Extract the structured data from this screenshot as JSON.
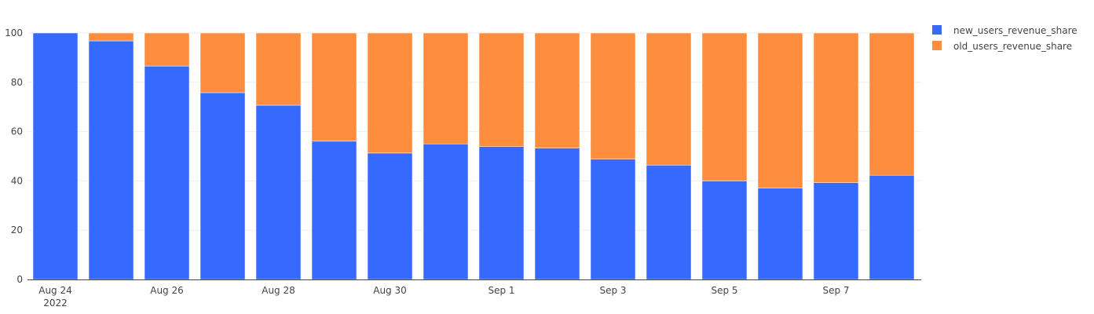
{
  "chart_data": {
    "type": "bar",
    "stacked": true,
    "x": [
      "2022-08-24",
      "2022-08-25",
      "2022-08-26",
      "2022-08-27",
      "2022-08-28",
      "2022-08-29",
      "2022-08-30",
      "2022-08-31",
      "2022-09-01",
      "2022-09-02",
      "2022-09-03",
      "2022-09-04",
      "2022-09-05",
      "2022-09-06",
      "2022-09-07",
      "2022-09-08"
    ],
    "x_tick_labels": [
      {
        "x": "2022-08-24",
        "label": "Aug 24",
        "sublabel": "2022"
      },
      {
        "x": "2022-08-26",
        "label": "Aug 26",
        "sublabel": ""
      },
      {
        "x": "2022-08-28",
        "label": "Aug 28",
        "sublabel": ""
      },
      {
        "x": "2022-08-30",
        "label": "Aug 30",
        "sublabel": ""
      },
      {
        "x": "2022-09-01",
        "label": "Sep 1",
        "sublabel": ""
      },
      {
        "x": "2022-09-03",
        "label": "Sep 3",
        "sublabel": ""
      },
      {
        "x": "2022-09-05",
        "label": "Sep 5",
        "sublabel": ""
      },
      {
        "x": "2022-09-07",
        "label": "Sep 7",
        "sublabel": ""
      }
    ],
    "y_ticks": [
      "0",
      "20",
      "40",
      "60",
      "80",
      "100"
    ],
    "ylim": [
      0,
      100
    ],
    "grid": true,
    "legend_position": "top-right",
    "series": [
      {
        "name": "new_users_revenue_share",
        "color": "#366aff",
        "values": [
          100,
          96.8,
          86.6,
          75.8,
          70.7,
          56.1,
          51.3,
          55.0,
          53.9,
          53.3,
          48.8,
          46.4,
          40.0,
          37.1,
          39.3,
          42.3
        ]
      },
      {
        "name": "old_users_revenue_share",
        "color": "#fe8d3e",
        "values": [
          0,
          3.2,
          13.4,
          24.2,
          29.3,
          43.9,
          48.7,
          45.0,
          46.1,
          46.7,
          51.2,
          53.6,
          60.0,
          62.9,
          60.7,
          57.7
        ]
      }
    ]
  }
}
